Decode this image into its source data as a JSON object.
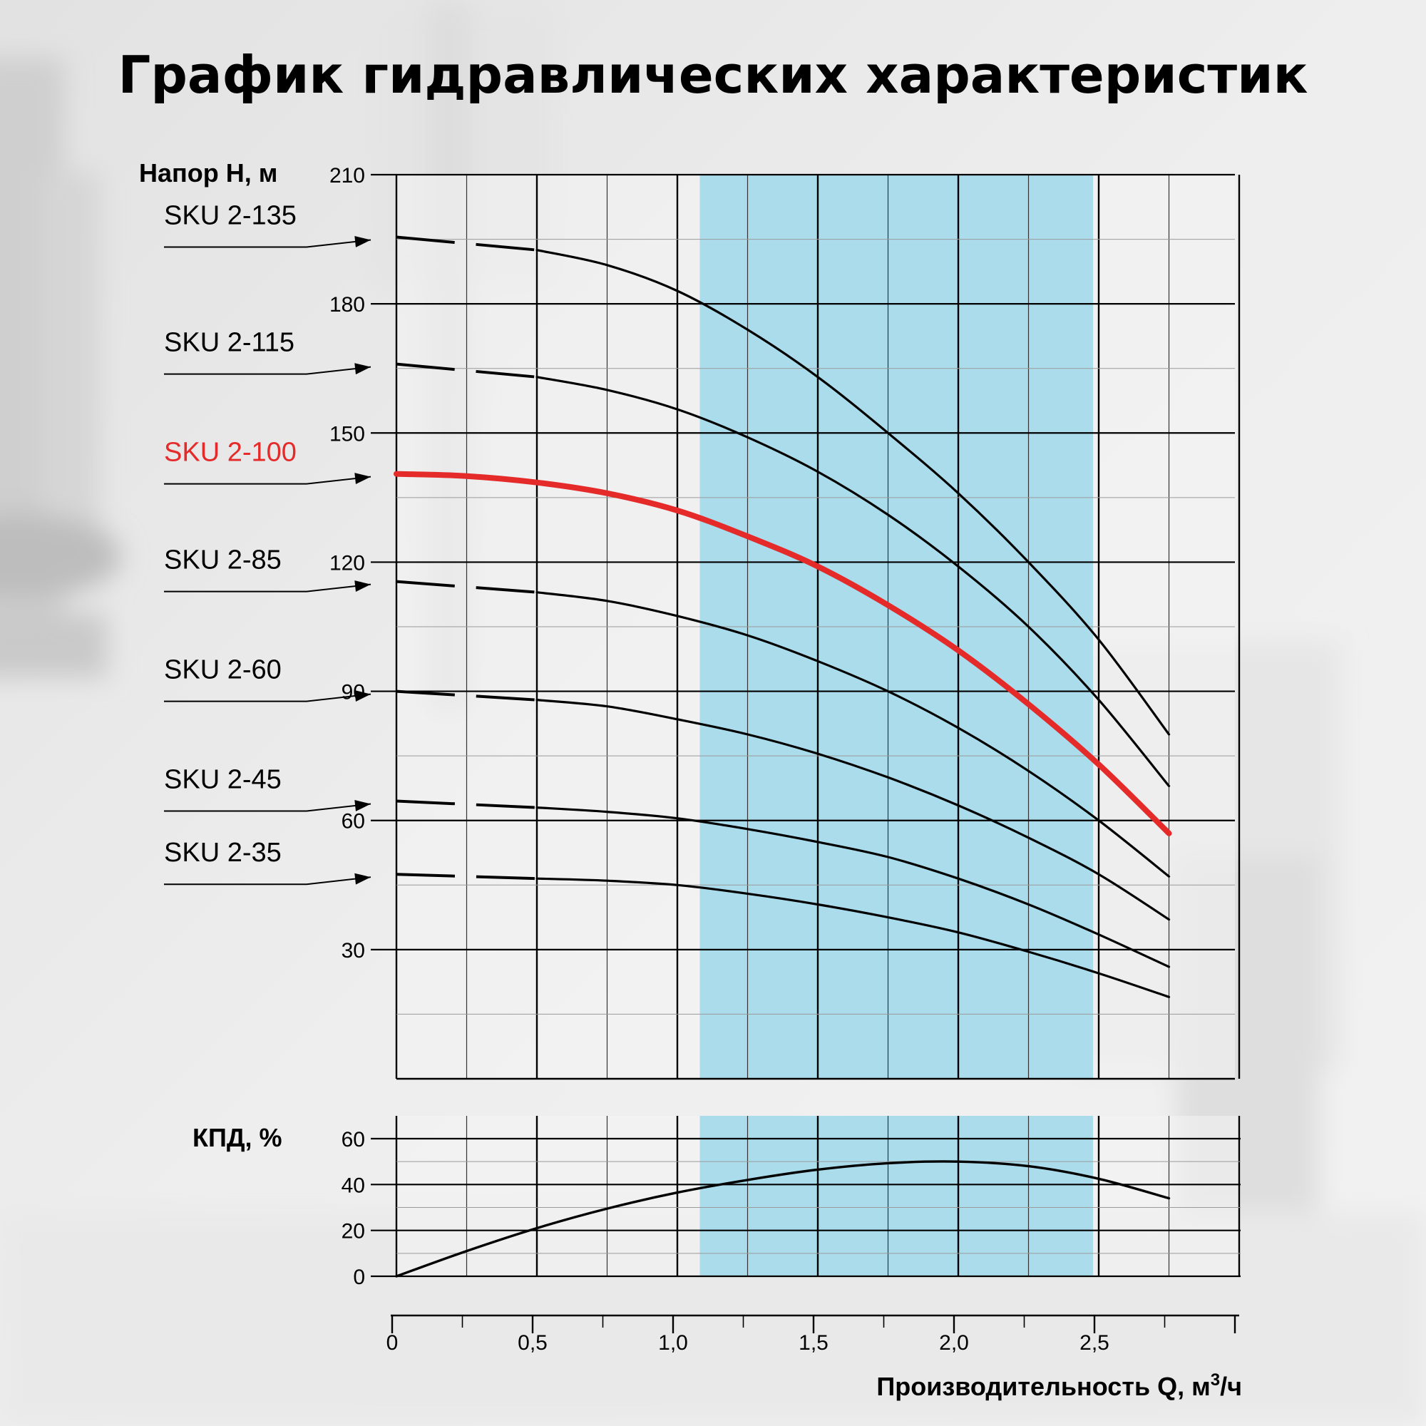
{
  "chart_data": {
    "type": "line",
    "title": "График гидравлических характеристик",
    "head_chart": {
      "ylabel": "Напор H, м",
      "ylim": [
        0,
        210
      ],
      "yticks": [
        "210",
        "180",
        "150",
        "120",
        "90",
        "60",
        "30"
      ],
      "ytick_values": [
        210,
        180,
        150,
        120,
        90,
        60,
        30
      ],
      "xlim": [
        0,
        3.0
      ],
      "highlight_range": [
        1.08,
        2.48
      ],
      "highlight_color": "#aadcec",
      "series": [
        {
          "name": "SKU 2-135",
          "color": "#000000",
          "highlight": false,
          "dashed_x": [
            0,
            0.5
          ],
          "dashed_y": [
            195.5,
            192.5
          ],
          "x": [
            0.5,
            0.75,
            1.0,
            1.25,
            1.5,
            1.75,
            2.0,
            2.25,
            2.5,
            2.75
          ],
          "y": [
            192.5,
            189,
            183,
            174,
            163,
            150,
            136,
            120,
            102,
            80
          ]
        },
        {
          "name": "SKU 2-115",
          "color": "#000000",
          "highlight": false,
          "dashed_x": [
            0,
            0.5
          ],
          "dashed_y": [
            166,
            163
          ],
          "x": [
            0.5,
            0.75,
            1.0,
            1.25,
            1.5,
            1.75,
            2.0,
            2.25,
            2.5,
            2.75
          ],
          "y": [
            163,
            160,
            155.5,
            149,
            141,
            131,
            119,
            105,
            88,
            68
          ]
        },
        {
          "name": "SKU 2-100",
          "color": "#e52a2a",
          "highlight": true,
          "dashed_x": [],
          "dashed_y": [],
          "x": [
            0,
            0.25,
            0.5,
            0.75,
            1.0,
            1.25,
            1.5,
            1.75,
            2.0,
            2.25,
            2.5,
            2.75
          ],
          "y": [
            140.5,
            140,
            138.5,
            136,
            132,
            126,
            119,
            110,
            99.5,
            87,
            73,
            57
          ]
        },
        {
          "name": "SKU 2-85",
          "color": "#000000",
          "highlight": false,
          "dashed_x": [
            0,
            0.5
          ],
          "dashed_y": [
            115.5,
            113
          ],
          "x": [
            0.5,
            0.75,
            1.0,
            1.25,
            1.5,
            1.75,
            2.0,
            2.25,
            2.5,
            2.75
          ],
          "y": [
            113,
            111,
            107.5,
            103,
            97,
            90,
            81.5,
            71.5,
            60,
            47
          ]
        },
        {
          "name": "SKU 2-60",
          "color": "#000000",
          "highlight": false,
          "dashed_x": [
            0,
            0.5
          ],
          "dashed_y": [
            90,
            88
          ],
          "x": [
            0.5,
            0.75,
            1.0,
            1.25,
            1.5,
            1.75,
            2.0,
            2.25,
            2.5,
            2.75
          ],
          "y": [
            88,
            86.5,
            83.5,
            80,
            75.5,
            70,
            63.5,
            56,
            47.5,
            37
          ]
        },
        {
          "name": "SKU 2-45",
          "color": "#000000",
          "highlight": false,
          "dashed_x": [
            0,
            0.5
          ],
          "dashed_y": [
            64.5,
            63
          ],
          "x": [
            0.5,
            0.75,
            1.0,
            1.25,
            1.5,
            1.75,
            2.0,
            2.25,
            2.5,
            2.75
          ],
          "y": [
            63,
            62,
            60.5,
            58,
            55,
            51.5,
            46.5,
            40.5,
            33.5,
            26
          ]
        },
        {
          "name": "SKU 2-35",
          "color": "#000000",
          "highlight": false,
          "dashed_x": [
            0,
            0.5
          ],
          "dashed_y": [
            47.5,
            46.5
          ],
          "x": [
            0.5,
            0.75,
            1.0,
            1.25,
            1.5,
            1.75,
            2.0,
            2.25,
            2.5,
            2.75
          ],
          "y": [
            46.5,
            46,
            45,
            43,
            40.5,
            37.5,
            34,
            29.5,
            24.5,
            19
          ]
        }
      ]
    },
    "efficiency_chart": {
      "ylabel": "КПД, %",
      "ylim": [
        0,
        70
      ],
      "yticks": [
        "60",
        "40",
        "20",
        "0"
      ],
      "ytick_values": [
        60,
        40,
        20,
        0
      ],
      "series": [
        {
          "name": "КПД",
          "color": "#000000",
          "x": [
            0,
            0.25,
            0.5,
            0.75,
            1.0,
            1.25,
            1.5,
            1.75,
            2.0,
            2.25,
            2.5,
            2.75
          ],
          "y": [
            0,
            11,
            21,
            29.5,
            36.5,
            42,
            46.5,
            49.3,
            50,
            48,
            42.5,
            34
          ]
        }
      ]
    },
    "x_axis": {
      "xlabel": "Производительность Q, м",
      "xlabel_sup": "3",
      "xlabel_suffix": "/ч",
      "xticks": [
        "0",
        "0,5",
        "1,0",
        "1,5",
        "2,0",
        "2,5"
      ],
      "xtick_values": [
        0,
        0.5,
        1.0,
        1.5,
        2.0,
        2.5
      ],
      "minor_step": 0.25
    },
    "grid": true
  }
}
